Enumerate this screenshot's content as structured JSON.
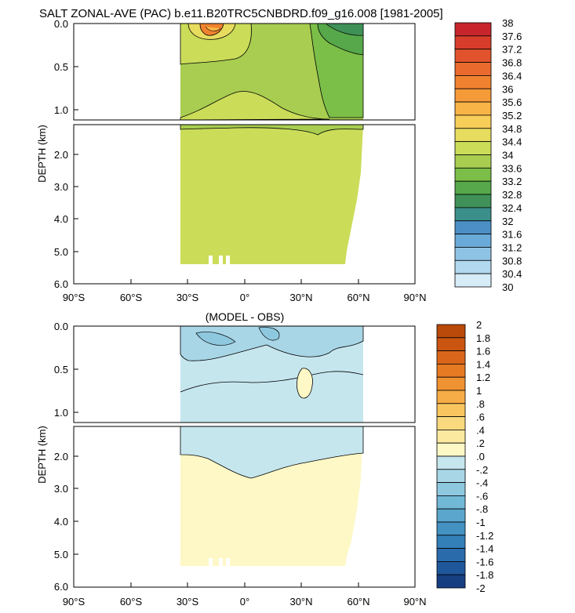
{
  "chart_data": [
    {
      "type": "heatmap",
      "title": "SALT ZONAL-AVE (PAC) b.e11.B20TRC5CNBDRD.f09_g16.008 [1981-2005]",
      "ylabel": "DEPTH (km)",
      "xlabel": "",
      "xlim": [
        -90,
        90
      ],
      "ylim_upper": [
        0.0,
        1.1
      ],
      "ylim_lower": [
        1.1,
        6.0
      ],
      "x_ticks": [
        "90°S",
        "60°S",
        "30°S",
        "0°",
        "30°N",
        "60°N",
        "90°N"
      ],
      "y_ticks_upper": [
        "0.0",
        "0.5",
        "1.0"
      ],
      "y_ticks_lower": [
        "2.0",
        "3.0",
        "4.0",
        "5.0",
        "6.0"
      ],
      "data_extent": {
        "lat_min": -34,
        "lat_max": 62,
        "max_depth_km": 5.4
      },
      "colorbar_levels": [
        "38",
        "37.6",
        "37.2",
        "36.8",
        "36.4",
        "36",
        "35.6",
        "35.2",
        "34.8",
        "34.4",
        "34",
        "33.6",
        "33.2",
        "32.8",
        "32.4",
        "32",
        "31.6",
        "31.2",
        "30.8",
        "30.4",
        "30"
      ],
      "colorbar_colors": [
        "#c6262c",
        "#d83d2b",
        "#e1532c",
        "#ea6a2e",
        "#f0822f",
        "#f59a38",
        "#f8b446",
        "#f6ce58",
        "#e8dc5f",
        "#cbdc59",
        "#a8cd50",
        "#7bbe48",
        "#56a84a",
        "#3f9158",
        "#3a8f8a",
        "#4c8fc6",
        "#6aaad8",
        "#8fc3e6",
        "#b2d8f0",
        "#d6ecf7"
      ]
    },
    {
      "type": "heatmap",
      "title": "(MODEL - OBS)",
      "ylabel": "DEPTH (km)",
      "xlabel": "",
      "xlim": [
        -90,
        90
      ],
      "ylim_upper": [
        0.0,
        1.1
      ],
      "ylim_lower": [
        1.1,
        6.0
      ],
      "x_ticks": [
        "90°S",
        "60°S",
        "30°S",
        "0°",
        "30°N",
        "60°N",
        "90°N"
      ],
      "y_ticks_upper": [
        "0.0",
        "0.5",
        "1.0"
      ],
      "y_ticks_lower": [
        "2.0",
        "3.0",
        "4.0",
        "5.0",
        "6.0"
      ],
      "data_extent": {
        "lat_min": -34,
        "lat_max": 62,
        "max_depth_km": 5.4
      },
      "colorbar_levels": [
        "2",
        "1.8",
        "1.6",
        "1.4",
        "1.2",
        "1",
        ".8",
        ".6",
        ".4",
        ".2",
        ".0",
        "-.2",
        "-.4",
        "-.6",
        "-.8",
        "-1",
        "-1.2",
        "-1.4",
        "-1.6",
        "-1.8",
        "-2"
      ],
      "colorbar_colors": [
        "#b94a0a",
        "#c95511",
        "#d9661a",
        "#e67a22",
        "#ef9232",
        "#f6ad47",
        "#f8c55f",
        "#f9d97e",
        "#fbe9a0",
        "#fdf8c6",
        "#c6e6ee",
        "#a8d6e6",
        "#8ec8df",
        "#72b8d7",
        "#5aa6cc",
        "#4392c2",
        "#337fb8",
        "#2a6bab",
        "#1f579b",
        "#163f82"
      ]
    }
  ]
}
